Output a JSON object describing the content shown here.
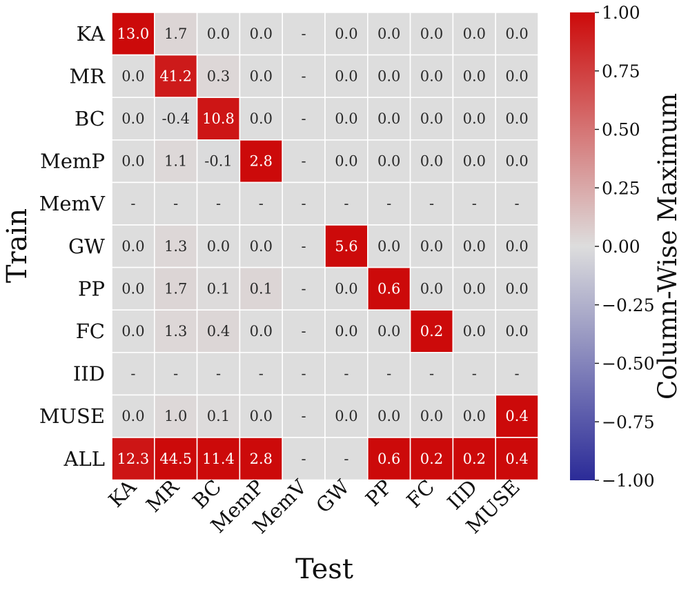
{
  "chart_data": {
    "type": "heatmap",
    "title": "",
    "xlabel": "Test",
    "ylabel": "Train",
    "columns": [
      "KA",
      "MR",
      "BC",
      "MemP",
      "MemV",
      "GW",
      "PP",
      "FC",
      "IID",
      "MUSE"
    ],
    "rows": [
      "KA",
      "MR",
      "BC",
      "MemP",
      "MemV",
      "GW",
      "PP",
      "FC",
      "IID",
      "MUSE",
      "ALL"
    ],
    "values": [
      [
        13.0,
        1.7,
        0.0,
        0.0,
        null,
        0.0,
        0.0,
        0.0,
        0.0,
        0.0
      ],
      [
        0.0,
        41.2,
        0.3,
        0.0,
        null,
        0.0,
        0.0,
        0.0,
        0.0,
        0.0
      ],
      [
        0.0,
        -0.4,
        10.8,
        0.0,
        null,
        0.0,
        0.0,
        0.0,
        0.0,
        0.0
      ],
      [
        0.0,
        1.1,
        -0.1,
        2.8,
        null,
        0.0,
        0.0,
        0.0,
        0.0,
        0.0
      ],
      [
        null,
        null,
        null,
        null,
        null,
        null,
        null,
        null,
        null,
        null
      ],
      [
        0.0,
        1.3,
        0.0,
        0.0,
        null,
        5.6,
        0.0,
        0.0,
        0.0,
        0.0
      ],
      [
        0.0,
        1.7,
        0.1,
        0.1,
        null,
        0.0,
        0.6,
        0.0,
        0.0,
        0.0
      ],
      [
        0.0,
        1.3,
        0.4,
        0.0,
        null,
        0.0,
        0.0,
        0.2,
        0.0,
        0.0
      ],
      [
        null,
        null,
        null,
        null,
        null,
        null,
        null,
        null,
        null,
        null
      ],
      [
        0.0,
        1.0,
        0.1,
        0.0,
        null,
        0.0,
        0.0,
        0.0,
        0.0,
        0.4
      ],
      [
        12.3,
        44.5,
        11.4,
        2.8,
        null,
        null,
        0.6,
        0.2,
        0.2,
        0.4
      ]
    ],
    "missing_label": "-",
    "normalization": "column-wise maximum",
    "colorbar": {
      "label": "Column-Wise Maximum",
      "range": [
        -1.0,
        1.0
      ],
      "ticks": [
        "1.00",
        "0.75",
        "0.50",
        "0.25",
        "0.00",
        "−0.25",
        "−0.50",
        "−0.75",
        "−1.00"
      ],
      "tick_values": [
        1.0,
        0.75,
        0.5,
        0.25,
        0.0,
        -0.25,
        -0.5,
        -0.75,
        -1.0
      ]
    },
    "colors": {
      "high": "#cc0a0a",
      "mid": "#dddddd",
      "low": "#2b2b98",
      "grid_line": "#ffffff",
      "text_dark": "#2a2a2a",
      "text_light": "#ffffff"
    }
  }
}
